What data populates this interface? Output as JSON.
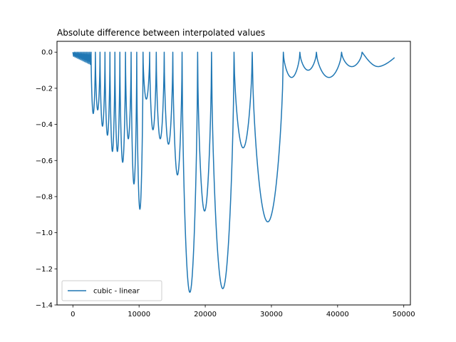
{
  "chart_data": {
    "type": "line",
    "title": "Absolute difference between interpolated values",
    "xlabel": "",
    "ylabel": "",
    "xlim": [
      -2400,
      51000
    ],
    "ylim": [
      -1.4,
      0.06
    ],
    "x_ticks": [
      0,
      10000,
      20000,
      30000,
      40000,
      50000
    ],
    "x_tick_labels": [
      "0",
      "10000",
      "20000",
      "30000",
      "40000",
      "50000"
    ],
    "y_ticks": [
      0.0,
      -0.2,
      -0.4,
      -0.6,
      -0.8,
      -1.0,
      -1.2,
      -1.4
    ],
    "y_tick_labels": [
      "0.0",
      "−0.2",
      "−0.4",
      "−0.6",
      "−0.8",
      "−1.0",
      "−1.2",
      "−1.4"
    ],
    "grid": false,
    "legend_position": "lower-left",
    "series": [
      {
        "name": "cubic - linear",
        "color": "#1f77b4",
        "arches": [
          {
            "x0": 0,
            "x1": 2750,
            "min": -0.07,
            "dense": true
          },
          {
            "x0": 2750,
            "x1": 3400,
            "min": -0.34
          },
          {
            "x0": 3400,
            "x1": 4100,
            "min": -0.32
          },
          {
            "x0": 4100,
            "x1": 4850,
            "min": -0.41
          },
          {
            "x0": 4850,
            "x1": 5600,
            "min": -0.46
          },
          {
            "x0": 5600,
            "x1": 6350,
            "min": -0.55
          },
          {
            "x0": 6350,
            "x1": 7100,
            "min": -0.55
          },
          {
            "x0": 7100,
            "x1": 7950,
            "min": -0.61
          },
          {
            "x0": 7950,
            "x1": 8800,
            "min": -0.48
          },
          {
            "x0": 8800,
            "x1": 9650,
            "min": -0.73
          },
          {
            "x0": 9650,
            "x1": 10600,
            "min": -0.87
          },
          {
            "x0": 10600,
            "x1": 11600,
            "min": -0.26
          },
          {
            "x0": 11600,
            "x1": 12600,
            "min": -0.43
          },
          {
            "x0": 12600,
            "x1": 13800,
            "min": -0.48
          },
          {
            "x0": 13800,
            "x1": 15100,
            "min": -0.51
          },
          {
            "x0": 15100,
            "x1": 16500,
            "min": -0.68
          },
          {
            "x0": 16500,
            "x1": 18850,
            "min": -1.33
          },
          {
            "x0": 18850,
            "x1": 20950,
            "min": -0.88
          },
          {
            "x0": 20950,
            "x1": 24350,
            "min": -1.31
          },
          {
            "x0": 24350,
            "x1": 27100,
            "min": -0.53
          },
          {
            "x0": 27100,
            "x1": 31800,
            "min": -0.94
          },
          {
            "x0": 31800,
            "x1": 34300,
            "min": -0.14
          },
          {
            "x0": 34300,
            "x1": 36800,
            "min": -0.1
          },
          {
            "x0": 36800,
            "x1": 40600,
            "min": -0.14
          },
          {
            "x0": 40600,
            "x1": 43700,
            "min": -0.08
          },
          {
            "x0": 43700,
            "x1": 48600,
            "min": -0.08,
            "end_value": -0.03
          }
        ]
      }
    ]
  }
}
